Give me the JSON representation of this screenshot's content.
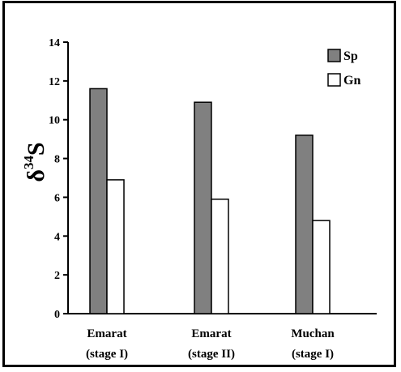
{
  "chart_data": {
    "type": "bar",
    "title": "",
    "xlabel": "",
    "ylabel": {
      "symbol": "δ",
      "superscript": "34",
      "element": "S"
    },
    "ylim": [
      0,
      14
    ],
    "yticks": [
      "0",
      "2",
      "4",
      "6",
      "8",
      "10",
      "12",
      "14"
    ],
    "categories": [
      {
        "line1": "Emarat",
        "line2": "(stage I)"
      },
      {
        "line1": "Emarat",
        "line2": "(stage II)"
      },
      {
        "line1": "Muchan",
        "line2": "(stage I)"
      }
    ],
    "series": [
      {
        "name": "Sp",
        "color": "#808080",
        "values": [
          11.6,
          10.9,
          9.2
        ]
      },
      {
        "name": "Gn",
        "color": "#ffffff",
        "values": [
          6.9,
          5.9,
          4.8
        ]
      }
    ],
    "legend_position": "top-right",
    "grid": false
  }
}
